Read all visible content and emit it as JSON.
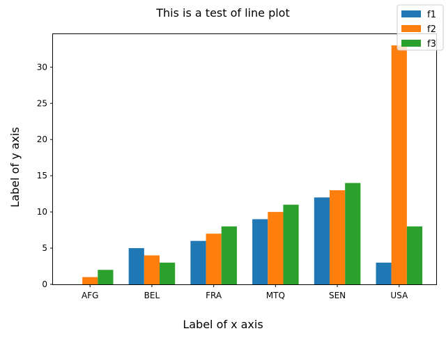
{
  "chart_data": {
    "type": "bar",
    "title": "This is a test of line plot",
    "xlabel": "Label of x axis",
    "ylabel": "Label of y axis",
    "categories": [
      "AFG",
      "BEL",
      "FRA",
      "MTQ",
      "SEN",
      "USA"
    ],
    "series": [
      {
        "name": "f1",
        "color": "#1f77b4",
        "values": [
          0,
          5,
          6,
          9,
          12,
          3
        ]
      },
      {
        "name": "f2",
        "color": "#ff7f0e",
        "values": [
          1,
          4,
          7,
          10,
          13,
          33
        ]
      },
      {
        "name": "f3",
        "color": "#2ca02c",
        "values": [
          2,
          3,
          8,
          11,
          14,
          8
        ]
      }
    ],
    "ylim": [
      0,
      34.65
    ],
    "yticks": [
      0,
      5,
      10,
      15,
      20,
      25,
      30
    ],
    "grid": false,
    "legend_position": "top-right"
  }
}
